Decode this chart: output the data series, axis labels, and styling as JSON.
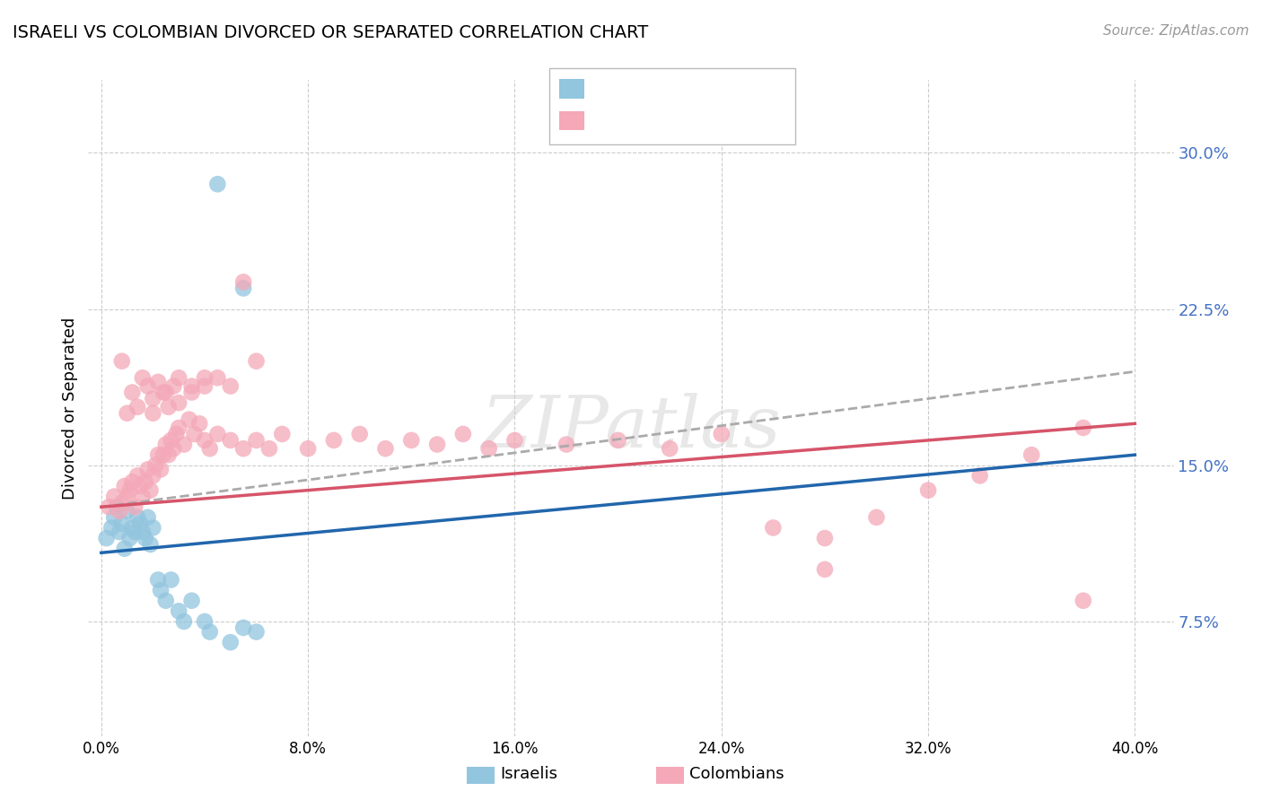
{
  "title": "ISRAELI VS COLOMBIAN DIVORCED OR SEPARATED CORRELATION CHART",
  "source": "Source: ZipAtlas.com",
  "ylabel": "Divorced or Separated",
  "y_ticks": [
    0.075,
    0.15,
    0.225,
    0.3
  ],
  "y_tick_labels": [
    "7.5%",
    "15.0%",
    "22.5%",
    "30.0%"
  ],
  "x_ticks": [
    0.0,
    0.08,
    0.16,
    0.24,
    0.32,
    0.4
  ],
  "x_tick_labels": [
    "0.0%",
    "8.0%",
    "16.0%",
    "24.0%",
    "32.0%",
    "40.0%"
  ],
  "xlim": [
    -0.005,
    0.415
  ],
  "ylim": [
    0.02,
    0.335
  ],
  "legend_label1": "Israelis",
  "legend_label2": "Colombians",
  "watermark": "ZIPatlas",
  "blue_color": "#92C5DE",
  "pink_color": "#F4A8B8",
  "blue_line_color": "#2166AC",
  "pink_line_color": "#D6546A",
  "dashed_line_color": "#AAAAAA",
  "israelis_x": [
    0.002,
    0.004,
    0.005,
    0.006,
    0.007,
    0.008,
    0.009,
    0.01,
    0.011,
    0.012,
    0.013,
    0.014,
    0.015,
    0.016,
    0.017,
    0.018,
    0.019,
    0.02,
    0.022,
    0.023,
    0.025,
    0.027,
    0.03,
    0.032,
    0.035,
    0.04,
    0.042,
    0.05,
    0.055,
    0.06,
    0.045,
    0.055
  ],
  "israelis_y": [
    0.115,
    0.12,
    0.125,
    0.13,
    0.118,
    0.122,
    0.11,
    0.128,
    0.115,
    0.12,
    0.118,
    0.125,
    0.122,
    0.118,
    0.115,
    0.125,
    0.112,
    0.12,
    0.095,
    0.09,
    0.085,
    0.095,
    0.08,
    0.075,
    0.085,
    0.075,
    0.07,
    0.065,
    0.072,
    0.07,
    0.285,
    0.235
  ],
  "colombians_x": [
    0.003,
    0.005,
    0.007,
    0.008,
    0.009,
    0.01,
    0.011,
    0.012,
    0.013,
    0.014,
    0.015,
    0.016,
    0.017,
    0.018,
    0.019,
    0.02,
    0.021,
    0.022,
    0.023,
    0.024,
    0.025,
    0.026,
    0.027,
    0.028,
    0.029,
    0.03,
    0.032,
    0.034,
    0.036,
    0.038,
    0.04,
    0.042,
    0.045,
    0.05,
    0.055,
    0.06,
    0.065,
    0.07,
    0.08,
    0.09,
    0.1,
    0.11,
    0.12,
    0.13,
    0.14,
    0.15,
    0.16,
    0.18,
    0.2,
    0.22,
    0.24,
    0.26,
    0.28,
    0.3,
    0.32,
    0.34,
    0.36,
    0.38,
    0.008,
    0.01,
    0.012,
    0.014,
    0.016,
    0.018,
    0.02,
    0.022,
    0.024,
    0.026,
    0.028,
    0.03,
    0.035,
    0.04,
    0.045,
    0.05,
    0.055,
    0.06,
    0.28,
    0.38,
    0.02,
    0.025,
    0.03,
    0.035,
    0.04
  ],
  "colombians_y": [
    0.13,
    0.135,
    0.128,
    0.132,
    0.14,
    0.135,
    0.138,
    0.142,
    0.13,
    0.145,
    0.14,
    0.135,
    0.142,
    0.148,
    0.138,
    0.145,
    0.15,
    0.155,
    0.148,
    0.155,
    0.16,
    0.155,
    0.162,
    0.158,
    0.165,
    0.168,
    0.16,
    0.172,
    0.165,
    0.17,
    0.162,
    0.158,
    0.165,
    0.162,
    0.158,
    0.162,
    0.158,
    0.165,
    0.158,
    0.162,
    0.165,
    0.158,
    0.162,
    0.16,
    0.165,
    0.158,
    0.162,
    0.16,
    0.162,
    0.158,
    0.165,
    0.12,
    0.115,
    0.125,
    0.138,
    0.145,
    0.155,
    0.168,
    0.2,
    0.175,
    0.185,
    0.178,
    0.192,
    0.188,
    0.182,
    0.19,
    0.185,
    0.178,
    0.188,
    0.192,
    0.185,
    0.188,
    0.192,
    0.188,
    0.238,
    0.2,
    0.1,
    0.085,
    0.175,
    0.185,
    0.18,
    0.188,
    0.192
  ],
  "blue_line_x0": 0.0,
  "blue_line_y0": 0.108,
  "blue_line_x1": 0.4,
  "blue_line_y1": 0.155,
  "pink_line_x0": 0.0,
  "pink_line_y0": 0.13,
  "pink_line_x1": 0.4,
  "pink_line_y1": 0.17,
  "dashed_line_x0": 0.0,
  "dashed_line_y0": 0.13,
  "dashed_line_x1": 0.4,
  "dashed_line_y1": 0.195
}
